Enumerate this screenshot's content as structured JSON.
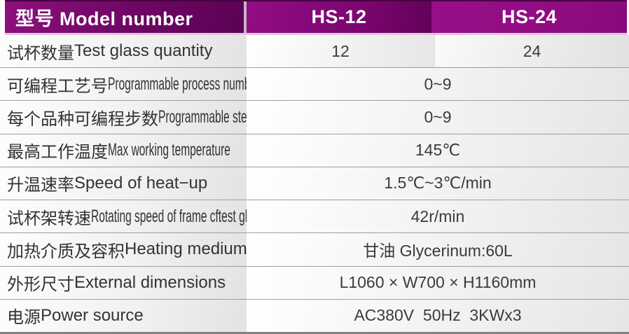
{
  "table": {
    "header": {
      "model_label": "型号 Model number",
      "columns": [
        "HS-12",
        "HS-24"
      ]
    },
    "rows": [
      {
        "label_zh": "试杯数量",
        "label_en": "Test glass quantity",
        "values": [
          "12",
          "24"
        ]
      },
      {
        "label_zh": "可编程工艺号",
        "label_en": "Programmable process number",
        "value": "0~9"
      },
      {
        "label_zh": "每个品种可编程步数",
        "label_en": "Programmable steps",
        "value": "0~9"
      },
      {
        "label_zh": "最高工作温度",
        "label_en": "Max working temperature",
        "value": "145℃"
      },
      {
        "label_zh": "升温速率",
        "label_en": "Speed of heat−up",
        "value": "1.5℃~3℃/min"
      },
      {
        "label_zh": "试杯架转速",
        "label_en": "Rotating speed of frame cftest glass",
        "value": "42r/min"
      },
      {
        "label_zh": "加热介质及容积",
        "label_en": "Heating medium",
        "value": "甘油 Glycerinum:60L"
      },
      {
        "label_zh": "外形尺寸",
        "label_en": "External dimensions",
        "value": "L1060 × W700 × H1160mm"
      },
      {
        "label_zh": "电源",
        "label_en": "Power source",
        "value": "AC380V  50Hz  3KWx3"
      }
    ],
    "colors": {
      "header_purple_left": "#8c107d",
      "header_purple_dark": "#5c0254",
      "header_hs12": "#930c85",
      "header_hs24": "#970f89",
      "header_divider": "#c9b2cc",
      "row_border_gray": "#9e9e9e",
      "bottom_border_gray": "#828282",
      "header_text": "#ffffff",
      "body_text": "#333333"
    }
  }
}
